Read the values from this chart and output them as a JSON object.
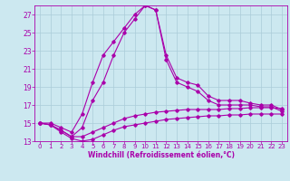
{
  "xlabel": "Windchill (Refroidissement éolien,°C)",
  "x_ticks": [
    0,
    1,
    2,
    3,
    4,
    5,
    6,
    7,
    8,
    9,
    10,
    11,
    12,
    13,
    14,
    15,
    16,
    17,
    18,
    19,
    20,
    21,
    22,
    23
  ],
  "xlim": [
    -0.5,
    23.5
  ],
  "ylim": [
    13,
    28
  ],
  "y_ticks": [
    13,
    15,
    17,
    19,
    21,
    23,
    25,
    27
  ],
  "background_color": "#cce8f0",
  "grid_color": "#aaccd8",
  "line_color": "#aa00aa",
  "line1_x": [
    0,
    1,
    2,
    3,
    4,
    5,
    6,
    7,
    8,
    9,
    10,
    11,
    12,
    13,
    14,
    15,
    16,
    17,
    18,
    19,
    20,
    21,
    22,
    23
  ],
  "line1_y": [
    15.0,
    15.0,
    14.5,
    14.0,
    16.0,
    19.5,
    22.5,
    24.0,
    25.5,
    27.0,
    28.0,
    27.5,
    22.5,
    20.0,
    19.5,
    19.2,
    18.0,
    17.5,
    17.5,
    17.5,
    17.2,
    17.0,
    17.0,
    16.5
  ],
  "line2_x": [
    0,
    1,
    2,
    3,
    4,
    5,
    6,
    7,
    8,
    9,
    10,
    11,
    12,
    13,
    14,
    15,
    16,
    17,
    18,
    19,
    20,
    21,
    22,
    23
  ],
  "line2_y": [
    15.0,
    14.8,
    14.2,
    13.5,
    14.5,
    17.5,
    19.5,
    22.5,
    25.0,
    26.5,
    28.0,
    27.5,
    22.0,
    19.5,
    19.0,
    18.5,
    17.5,
    17.0,
    17.0,
    17.0,
    17.0,
    16.8,
    16.8,
    16.3
  ],
  "line3_x": [
    0,
    1,
    2,
    3,
    4,
    5,
    6,
    7,
    8,
    9,
    10,
    11,
    12,
    13,
    14,
    15,
    16,
    17,
    18,
    19,
    20,
    21,
    22,
    23
  ],
  "line3_y": [
    15.0,
    14.8,
    14.2,
    13.5,
    13.5,
    14.0,
    14.5,
    15.0,
    15.5,
    15.8,
    16.0,
    16.2,
    16.3,
    16.4,
    16.5,
    16.5,
    16.5,
    16.5,
    16.6,
    16.6,
    16.7,
    16.7,
    16.7,
    16.6
  ],
  "line4_x": [
    0,
    1,
    2,
    3,
    4,
    5,
    6,
    7,
    8,
    9,
    10,
    11,
    12,
    13,
    14,
    15,
    16,
    17,
    18,
    19,
    20,
    21,
    22,
    23
  ],
  "line4_y": [
    15.0,
    14.8,
    14.0,
    13.3,
    13.0,
    13.2,
    13.7,
    14.2,
    14.6,
    14.8,
    15.0,
    15.2,
    15.4,
    15.5,
    15.6,
    15.7,
    15.8,
    15.8,
    15.9,
    15.9,
    16.0,
    16.0,
    16.0,
    16.0
  ]
}
